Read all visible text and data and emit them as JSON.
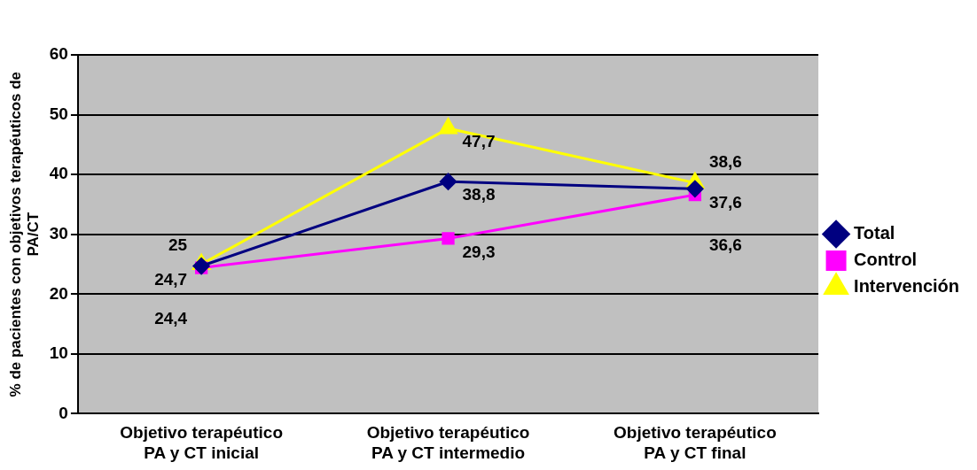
{
  "chart_data": {
    "type": "line",
    "ylabel": "% de pacientes con objetivos terapéuticos de PA/CT",
    "categories": [
      "Objetivo terapéutico PA y CT inicial",
      "Objetivo terapéutico PA y CT intermedio",
      "Objetivo terapéutico PA y CT final"
    ],
    "series": [
      {
        "name": "Total",
        "color": "#000080",
        "marker": "diamond",
        "values": [
          24.7,
          38.8,
          37.6
        ],
        "value_labels": [
          "24,7",
          "38,8",
          "37,6"
        ]
      },
      {
        "name": "Control",
        "color": "#ff00ff",
        "marker": "square",
        "values": [
          24.4,
          29.3,
          36.6
        ],
        "value_labels": [
          "24,4",
          "29,3",
          "36,6"
        ]
      },
      {
        "name": "Intervención",
        "color": "#ffff00",
        "marker": "triangle",
        "values": [
          25,
          47.7,
          38.6
        ],
        "value_labels": [
          "25",
          "47,7",
          "38,6"
        ]
      }
    ],
    "ylim": [
      0,
      60
    ],
    "yticks": [
      0,
      10,
      20,
      30,
      40,
      50,
      60
    ],
    "grid": "y",
    "legend": "right",
    "line_style": "solid"
  }
}
